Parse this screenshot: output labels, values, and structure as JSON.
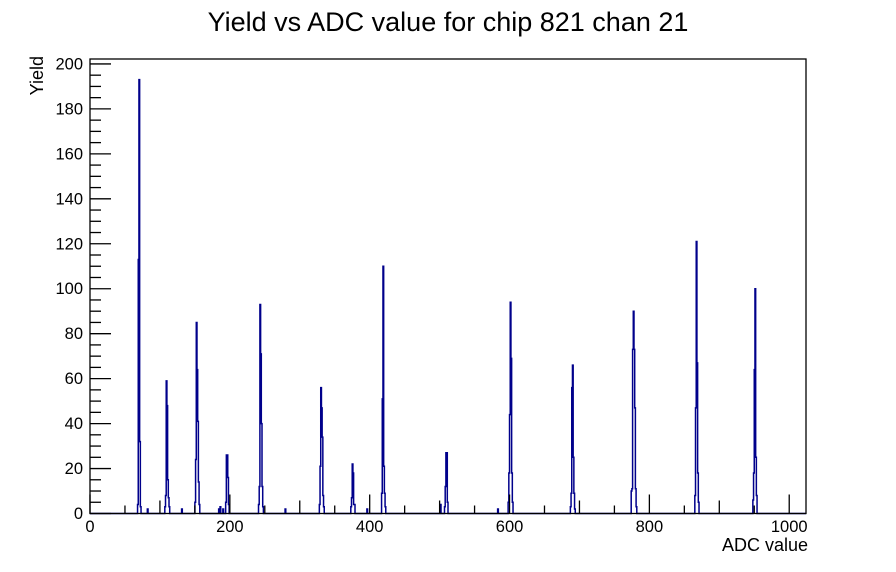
{
  "page": {
    "background": "#ffffff"
  },
  "chart_data": {
    "type": "bar",
    "title": "Yield vs ADC value for chip 821 chan 21",
    "xlabel": "ADC value",
    "ylabel": "Yield",
    "xlim": [
      0,
      1024
    ],
    "ylim": [
      0,
      202.2
    ],
    "bin_width": 1,
    "grid": false,
    "legend": false,
    "line_color": "#00008b",
    "axis_color": "#000000",
    "x_major_tick_labels": [
      0,
      200,
      400,
      600,
      800,
      1000
    ],
    "y_major_tick_labels": [
      0,
      20,
      40,
      60,
      80,
      100,
      120,
      140,
      160,
      180,
      200
    ],
    "x_tick_steps": {
      "minor": 50,
      "medium": 100,
      "major": 200
    },
    "y_tick_steps": {
      "minor": 5,
      "major": 20
    },
    "bins": [
      [
        68,
        4
      ],
      [
        69,
        113
      ],
      [
        70,
        193
      ],
      [
        71,
        32
      ],
      [
        72,
        3
      ],
      [
        82,
        2
      ],
      [
        107,
        3
      ],
      [
        108,
        8
      ],
      [
        109,
        59
      ],
      [
        110,
        48
      ],
      [
        111,
        15
      ],
      [
        112,
        7
      ],
      [
        113,
        3
      ],
      [
        131,
        2
      ],
      [
        150,
        5
      ],
      [
        151,
        24
      ],
      [
        152,
        85
      ],
      [
        153,
        64
      ],
      [
        154,
        41
      ],
      [
        155,
        14
      ],
      [
        156,
        4
      ],
      [
        184,
        2
      ],
      [
        186,
        3
      ],
      [
        190,
        2
      ],
      [
        194,
        5
      ],
      [
        195,
        26
      ],
      [
        196,
        26
      ],
      [
        197,
        16
      ],
      [
        198,
        4
      ],
      [
        241,
        4
      ],
      [
        242,
        12
      ],
      [
        243,
        93
      ],
      [
        244,
        71
      ],
      [
        245,
        40
      ],
      [
        246,
        12
      ],
      [
        247,
        3
      ],
      [
        279,
        2
      ],
      [
        328,
        4
      ],
      [
        329,
        21
      ],
      [
        330,
        56
      ],
      [
        331,
        47
      ],
      [
        332,
        34
      ],
      [
        333,
        8
      ],
      [
        334,
        3
      ],
      [
        373,
        3
      ],
      [
        374,
        7
      ],
      [
        375,
        22
      ],
      [
        376,
        18
      ],
      [
        377,
        4
      ],
      [
        378,
        4
      ],
      [
        396,
        2
      ],
      [
        417,
        9
      ],
      [
        418,
        51
      ],
      [
        419,
        110
      ],
      [
        420,
        21
      ],
      [
        421,
        9
      ],
      [
        422,
        3
      ],
      [
        501,
        4
      ],
      [
        507,
        3
      ],
      [
        508,
        12
      ],
      [
        509,
        27
      ],
      [
        510,
        27
      ],
      [
        511,
        5
      ],
      [
        583,
        2
      ],
      [
        598,
        5
      ],
      [
        599,
        18
      ],
      [
        600,
        44
      ],
      [
        601,
        94
      ],
      [
        602,
        69
      ],
      [
        603,
        18
      ],
      [
        604,
        5
      ],
      [
        687,
        3
      ],
      [
        688,
        9
      ],
      [
        689,
        56
      ],
      [
        690,
        66
      ],
      [
        691,
        25
      ],
      [
        692,
        9
      ],
      [
        693,
        2
      ],
      [
        774,
        10
      ],
      [
        775,
        11
      ],
      [
        776,
        73
      ],
      [
        777,
        90
      ],
      [
        778,
        73
      ],
      [
        779,
        47
      ],
      [
        780,
        11
      ],
      [
        781,
        3
      ],
      [
        865,
        8
      ],
      [
        866,
        47
      ],
      [
        867,
        121
      ],
      [
        868,
        67
      ],
      [
        869,
        18
      ],
      [
        870,
        5
      ],
      [
        948,
        6
      ],
      [
        949,
        18
      ],
      [
        950,
        64
      ],
      [
        951,
        100
      ],
      [
        952,
        25
      ],
      [
        953,
        8
      ]
    ]
  }
}
